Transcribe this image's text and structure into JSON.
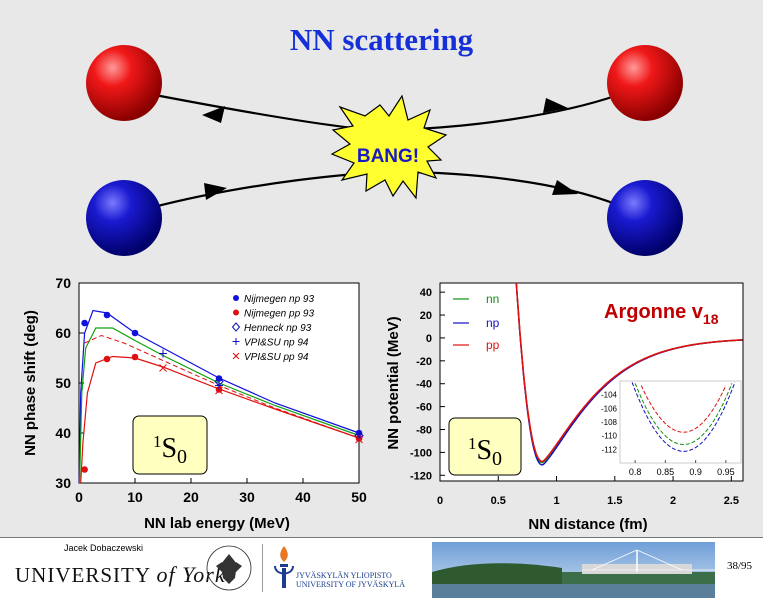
{
  "slide": {
    "title": "NN scattering",
    "bang_label": "BANG!",
    "page_number": "38/95"
  },
  "colors": {
    "title": "#1530d8",
    "proton": "#e01010",
    "neutron": "#1010c0",
    "bang_fill": "#ffff30",
    "argonne_label": "#c00000"
  },
  "phase_chart": {
    "ylabel": "NN phase shift (deg)",
    "xlabel": "NN lab energy (MeV)",
    "xticks": [
      "0",
      "10",
      "20",
      "30",
      "40",
      "50"
    ],
    "yticks": [
      "30",
      "40",
      "50",
      "60",
      "70"
    ],
    "label_box": {
      "main": "1",
      "sup": "S",
      "sub": "0"
    },
    "legend": [
      "Nijmegen np 93",
      "Nijmegen pp 93",
      "Henneck np 93",
      "VPI&SU np 94",
      "VPI&SU pp 94"
    ]
  },
  "potential_chart": {
    "ylabel": "NN potential (MeV)",
    "xlabel": "NN distance (fm)",
    "xticks": [
      "0",
      "0.5",
      "1",
      "1.5",
      "2",
      "2.5"
    ],
    "yticks": [
      "40",
      "20",
      "0",
      "-20",
      "-40",
      "-60",
      "-80",
      "-100",
      "-120"
    ],
    "title": "Argonne v",
    "title_sub": "18",
    "label_box": {
      "main": "1",
      "sup": "S",
      "sub": "0"
    },
    "legend": [
      "nn",
      "np",
      "pp"
    ],
    "inset": {
      "xticks": [
        "0.8",
        "0.85",
        "0.9",
        "0.95"
      ],
      "yticks": [
        "-104",
        "-106",
        "-108",
        "-110",
        "-112"
      ]
    }
  },
  "chart_data": [
    {
      "type": "line",
      "xlabel": "NN lab energy (MeV)",
      "ylabel": "NN phase shift (deg)",
      "xlim": [
        0,
        50
      ],
      "ylim": [
        30,
        70
      ],
      "series": [
        {
          "name": "Nijmegen np 93",
          "x": [
            1,
            5,
            10,
            25,
            50
          ],
          "y": [
            62,
            63.6,
            60,
            50.9,
            40
          ]
        },
        {
          "name": "Nijmegen pp 93",
          "x": [
            1,
            5,
            10,
            25,
            50
          ],
          "y": [
            32.7,
            54.8,
            55.2,
            48.7,
            38.9
          ]
        },
        {
          "name": "Henneck np 93",
          "x": [
            25,
            50
          ],
          "y": [
            50.3,
            39.5
          ]
        },
        {
          "name": "VPI&SU np 94",
          "x": [
            15,
            25,
            50
          ],
          "y": [
            55.9,
            49.5,
            39.2
          ]
        },
        {
          "name": "VPI&SU pp 94",
          "x": [
            15,
            25,
            50
          ],
          "y": [
            53,
            48.5,
            38.7
          ]
        }
      ]
    },
    {
      "type": "line",
      "title": "Argonne v18",
      "xlabel": "NN distance (fm)",
      "ylabel": "NN potential (MeV)",
      "xlim": [
        0,
        2.6
      ],
      "ylim": [
        -125,
        48
      ],
      "series": [
        {
          "name": "nn",
          "x": [
            0.65,
            0.75,
            0.8,
            0.85,
            0.88,
            0.9,
            0.95,
            1.0,
            1.2,
            1.5,
            2.0,
            2.5
          ],
          "y": [
            60,
            -60,
            -95,
            -110,
            -111,
            -110,
            -100,
            -85,
            -45,
            -15,
            -4,
            -1
          ]
        },
        {
          "name": "np",
          "x": [
            0.65,
            0.75,
            0.8,
            0.85,
            0.88,
            0.9,
            0.95,
            1.0,
            1.2,
            1.5,
            2.0,
            2.5
          ],
          "y": [
            60,
            -60,
            -95,
            -111,
            -112,
            -111,
            -101,
            -86,
            -46,
            -15,
            -4,
            -1
          ]
        },
        {
          "name": "pp",
          "x": [
            0.65,
            0.75,
            0.8,
            0.85,
            0.88,
            0.9,
            0.95,
            1.0,
            1.2,
            1.5,
            2.0,
            2.5
          ],
          "y": [
            60,
            -60,
            -95,
            -108,
            -109,
            -108,
            -99,
            -84,
            -44,
            -14,
            -4,
            -1
          ]
        }
      ]
    }
  ],
  "footer": {
    "author": "Jacek Dobaczewski",
    "york_logo": "UNIVERSITY of York",
    "warsaw_seal": "UNIVERSITY OF WARSAW",
    "jyvaskyla_line1": "JYVÄSKYLÄN YLIOPISTO",
    "jyvaskyla_line2": "UNIVERSITY OF JYVÄSKYLÄ"
  }
}
